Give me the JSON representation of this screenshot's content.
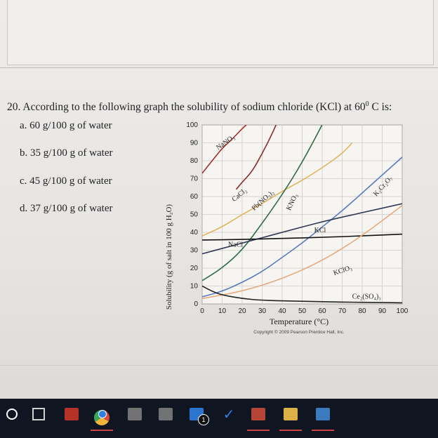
{
  "question": {
    "number": "20.",
    "text": "According to the following graph the solubility of sodium chloride (KCl) at 60",
    "degree_sup": "0",
    "tail": " C is:",
    "options": [
      {
        "id": "a",
        "label": "a. 60 g/100 g of water"
      },
      {
        "id": "b",
        "label": "b. 35 g/100 g of water"
      },
      {
        "id": "c",
        "label": "c. 45 g/100 g of water"
      },
      {
        "id": "d",
        "label": "d. 37 g/100 g of water"
      }
    ]
  },
  "chart_data": {
    "type": "line",
    "xlabel": "Temperature (°C)",
    "ylabel": "Solubility (g of salt in 100 g H₂O)",
    "xlim": [
      0,
      100
    ],
    "ylim": [
      0,
      100
    ],
    "x_ticks": [
      "0",
      "10",
      "20",
      "30",
      "40",
      "50",
      "60",
      "70",
      "80",
      "90",
      "100"
    ],
    "y_ticks": [
      "0",
      "10",
      "20",
      "30",
      "40",
      "50",
      "60",
      "70",
      "80",
      "90",
      "100"
    ],
    "grid": true,
    "credit": "Copyright © 2009 Pearson Prentice Hall, Inc.",
    "series": [
      {
        "name": "NaNO₃",
        "color": "#a0302c",
        "x": [
          0,
          5,
          10,
          15,
          20,
          25
        ],
        "y": [
          73,
          80,
          87,
          92,
          98,
          103
        ]
      },
      {
        "name": "CaCl₂",
        "color": "#8a2f2c",
        "x": [
          17,
          20,
          25,
          30,
          35,
          40
        ],
        "y": [
          64,
          68,
          74,
          84,
          95,
          108
        ]
      },
      {
        "name": "Pb(NO₃)₂",
        "color": "#e0b55c",
        "x": [
          0,
          10,
          20,
          30,
          40,
          50,
          60,
          70,
          75
        ],
        "y": [
          38,
          43,
          50,
          56,
          63,
          69,
          76,
          84,
          90
        ]
      },
      {
        "name": "KNO₃",
        "color": "#2f6b45",
        "x": [
          0,
          10,
          20,
          30,
          40,
          50,
          60,
          62
        ],
        "y": [
          13,
          20,
          30,
          45,
          61,
          79,
          100,
          105
        ]
      },
      {
        "name": "K₂Cr₂O₇",
        "color": "#5b7bbf",
        "x": [
          0,
          10,
          20,
          30,
          40,
          50,
          60,
          70,
          80,
          90,
          100
        ],
        "y": [
          4,
          7,
          12,
          18,
          26,
          34,
          43,
          52,
          62,
          72,
          82
        ]
      },
      {
        "name": "KCl",
        "color": "#303a55",
        "x": [
          0,
          20,
          40,
          60,
          80,
          100
        ],
        "y": [
          28,
          34,
          40,
          46,
          51,
          56
        ]
      },
      {
        "name": "NaCl",
        "color": "#111111",
        "x": [
          0,
          20,
          40,
          60,
          80,
          100
        ],
        "y": [
          35.7,
          36,
          36.6,
          37.2,
          38,
          39
        ]
      },
      {
        "name": "KClO₃",
        "color": "#e6a97c",
        "x": [
          0,
          20,
          40,
          60,
          80,
          100
        ],
        "y": [
          3,
          7,
          14,
          24,
          38,
          55
        ]
      },
      {
        "name": "Ce₂(SO₄)₃",
        "color": "#222222",
        "x": [
          0,
          5,
          10,
          20,
          30,
          50,
          70,
          90,
          100
        ],
        "y": [
          10,
          7,
          5,
          3,
          2,
          1.5,
          1,
          0.8,
          0.6
        ]
      }
    ],
    "labels": [
      {
        "series": "NaNO₃",
        "x": 8,
        "y": 86,
        "rot": -35
      },
      {
        "series": "CaCl₂",
        "x": 16,
        "y": 57,
        "rot": -40
      },
      {
        "series": "Pb(NO₃)₂",
        "x": 26,
        "y": 52,
        "rot": -42
      },
      {
        "series": "KNO₃",
        "x": 44,
        "y": 52,
        "rot": -65
      },
      {
        "series": "K₂Cr₂O₇",
        "x": 87,
        "y": 60,
        "rot": -48
      },
      {
        "series": "KCl",
        "x": 56,
        "y": 40,
        "rot": 0
      },
      {
        "series": "NaCl",
        "x": 13,
        "y": 32,
        "rot": 0
      },
      {
        "series": "KClO₃",
        "x": 66,
        "y": 16,
        "rot": -18
      },
      {
        "series": "Ce₂(SO₄)₃",
        "x": 75,
        "y": 3,
        "rot": 0
      }
    ]
  },
  "taskbar": {
    "items": [
      {
        "name": "start-button-icon",
        "color": "#ffffff"
      },
      {
        "name": "task-view-icon",
        "color": "#ffffff"
      },
      {
        "name": "app-red-icon",
        "color": "#c8352a"
      },
      {
        "name": "chrome-icon",
        "color": "#f0b43c"
      },
      {
        "name": "app-icon-1",
        "color": "#7c7c7c"
      },
      {
        "name": "app-icon-2",
        "color": "#7c7c7c"
      },
      {
        "name": "mail-icon",
        "color": "#2f7fe0"
      },
      {
        "name": "checkmark-icon",
        "color": "#2f7fe0"
      },
      {
        "name": "calculator-icon",
        "color": "#c84a3a"
      },
      {
        "name": "file-explorer-icon",
        "color": "#f1c14b"
      },
      {
        "name": "photos-icon",
        "color": "#3f86d0"
      }
    ],
    "mail_badge": "1"
  }
}
